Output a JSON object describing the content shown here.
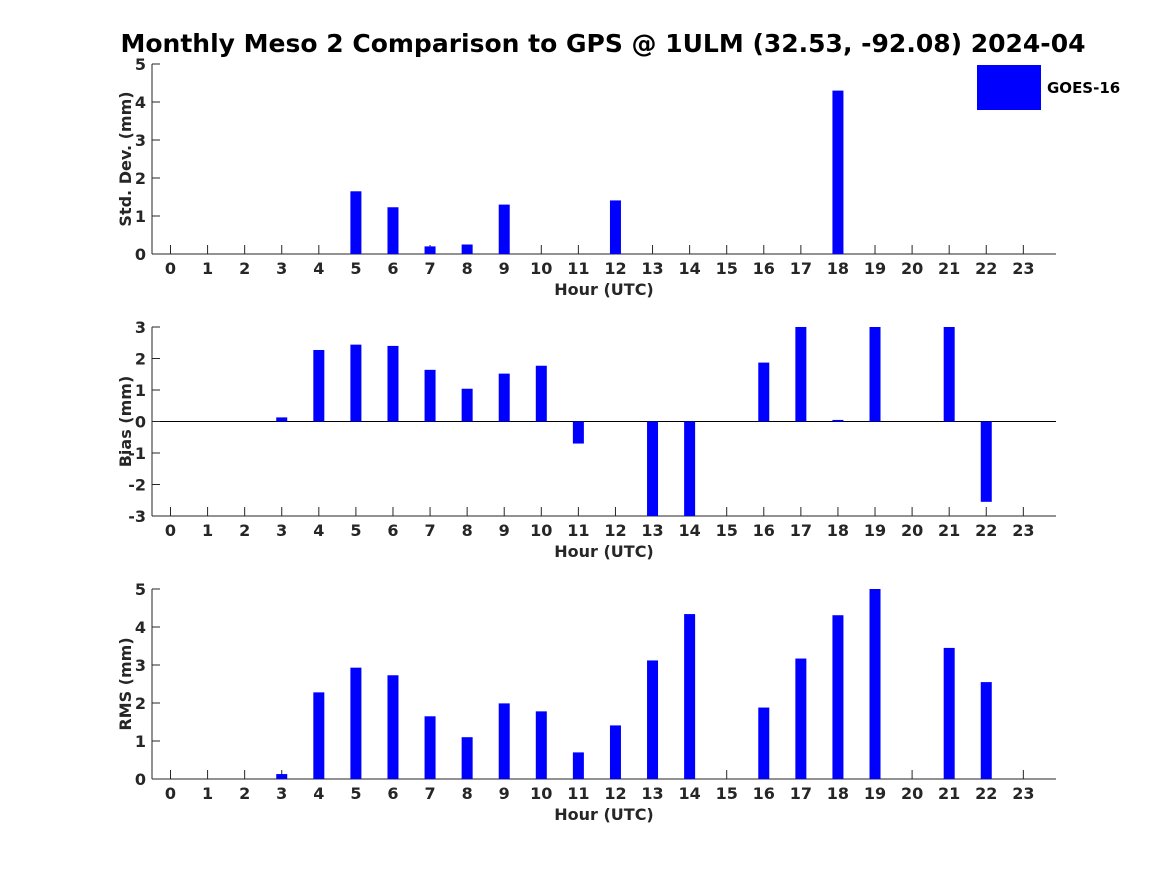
{
  "figure": {
    "title": "Monthly Meso 2 Comparison to GPS @ 1ULM (32.53, -92.08) 2024-04",
    "legend": {
      "label": "GOES-16",
      "color": "#0000ff",
      "placement": "top-right"
    }
  },
  "chart_data": [
    {
      "type": "bar",
      "title": "",
      "xlabel": "Hour (UTC)",
      "ylabel": "Std. Dev. (mm)",
      "ylim": [
        0,
        5
      ],
      "yticks": [
        0,
        1,
        2,
        3,
        4,
        5
      ],
      "categories": [
        "0",
        "1",
        "2",
        "3",
        "4",
        "5",
        "6",
        "7",
        "8",
        "9",
        "10",
        "11",
        "12",
        "13",
        "14",
        "15",
        "16",
        "17",
        "18",
        "19",
        "20",
        "21",
        "22",
        "23"
      ],
      "series": [
        {
          "name": "GOES-16",
          "color": "#0000ff",
          "values": [
            null,
            null,
            null,
            null,
            null,
            1.65,
            1.23,
            0.2,
            0.25,
            1.3,
            null,
            null,
            1.41,
            null,
            null,
            null,
            null,
            null,
            4.3,
            null,
            null,
            null,
            null,
            null
          ]
        }
      ],
      "grid": false,
      "legend": "top-right"
    },
    {
      "type": "bar",
      "title": "",
      "xlabel": "Hour (UTC)",
      "ylabel": "Bias (mm)",
      "ylim": [
        -3,
        3
      ],
      "yticks": [
        -3,
        -2,
        -1,
        0,
        1,
        2,
        3
      ],
      "categories": [
        "0",
        "1",
        "2",
        "3",
        "4",
        "5",
        "6",
        "7",
        "8",
        "9",
        "10",
        "11",
        "12",
        "13",
        "14",
        "15",
        "16",
        "17",
        "18",
        "19",
        "20",
        "21",
        "22",
        "23"
      ],
      "series": [
        {
          "name": "GOES-16",
          "color": "#0000ff",
          "values": [
            null,
            null,
            null,
            0.13,
            2.27,
            2.44,
            2.4,
            1.64,
            1.04,
            1.52,
            1.77,
            -0.7,
            null,
            -3.0,
            -3.0,
            null,
            1.87,
            3.0,
            0.05,
            3.0,
            null,
            3.0,
            -2.55,
            null
          ]
        }
      ],
      "grid": false
    },
    {
      "type": "bar",
      "title": "",
      "xlabel": "Hour (UTC)",
      "ylabel": "RMS (mm)",
      "ylim": [
        0,
        5
      ],
      "yticks": [
        0,
        1,
        2,
        3,
        4,
        5
      ],
      "categories": [
        "0",
        "1",
        "2",
        "3",
        "4",
        "5",
        "6",
        "7",
        "8",
        "9",
        "10",
        "11",
        "12",
        "13",
        "14",
        "15",
        "16",
        "17",
        "18",
        "19",
        "20",
        "21",
        "22",
        "23"
      ],
      "series": [
        {
          "name": "GOES-16",
          "color": "#0000ff",
          "values": [
            null,
            null,
            null,
            0.13,
            2.28,
            2.93,
            2.73,
            1.65,
            1.1,
            1.99,
            1.78,
            0.7,
            1.41,
            3.12,
            4.34,
            null,
            1.88,
            3.17,
            4.31,
            5.0,
            null,
            3.45,
            2.55,
            null
          ]
        }
      ],
      "grid": false
    }
  ]
}
